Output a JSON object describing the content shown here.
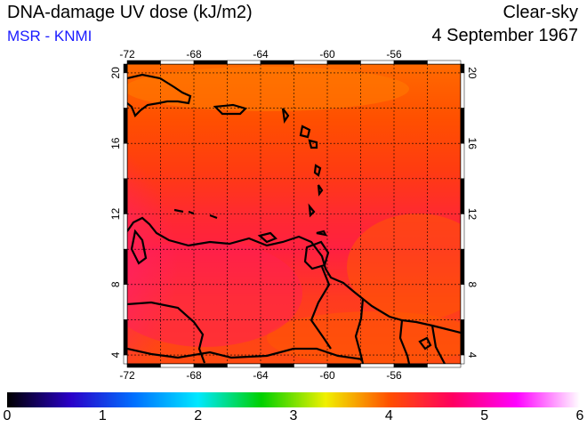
{
  "header": {
    "title": "DNA-damage UV dose (kJ/m2)",
    "source": "MSR - KNMI",
    "condition": "Clear-sky",
    "date": "4 September 1967"
  },
  "map": {
    "lon_ticks_top": [
      "-72",
      "-68",
      "-64",
      "-60",
      "-56"
    ],
    "lon_ticks_bottom": [
      "-72",
      "-68",
      "-64",
      "-60",
      "-56"
    ],
    "lat_ticks_left": [
      "20",
      "16",
      "12",
      "8",
      "4"
    ],
    "lat_ticks_right": [
      "20",
      "16",
      "12",
      "8",
      "4"
    ],
    "lon_range": [
      -72,
      -52
    ],
    "lat_range": [
      3.5,
      20.5
    ],
    "grid": true
  },
  "colorbar": {
    "labels": [
      "0",
      "1",
      "2",
      "3",
      "4",
      "5",
      "6"
    ],
    "range": [
      0,
      6
    ],
    "colors": [
      "#000000",
      "#2a00c8",
      "#0070ff",
      "#00e8ff",
      "#00d000",
      "#f0f000",
      "#ff5000",
      "#ff0060",
      "#ff00ff",
      "#ffffff"
    ]
  },
  "colors": {
    "base_field": "#ff4e00",
    "high_field": "#ff1f55",
    "peak_field": "#ff60e0",
    "coast": "#000000"
  }
}
